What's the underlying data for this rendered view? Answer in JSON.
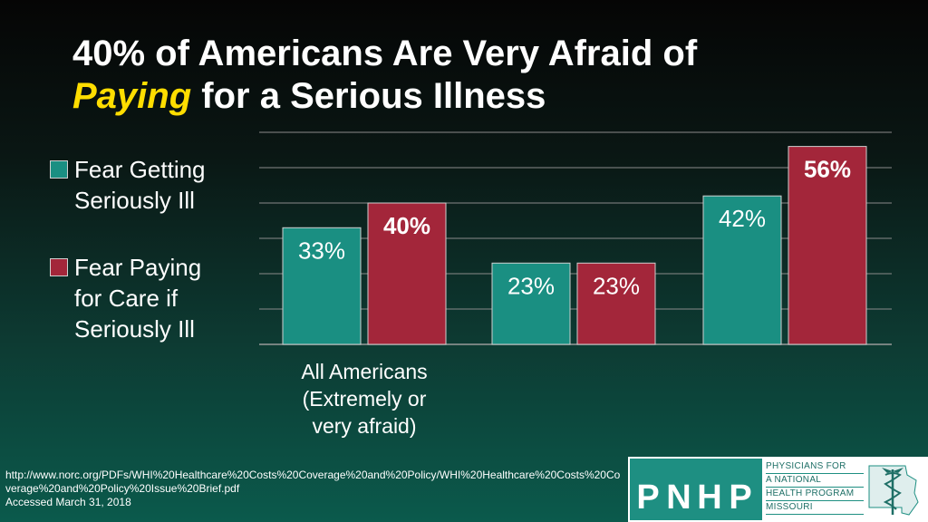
{
  "title": {
    "line1": "40% of Americans Are Very Afraid of",
    "line2_highlight": "Paying",
    "line2_rest": " for a Serious Illness"
  },
  "colors": {
    "series1": "#1a8f82",
    "series2": "#a3263a",
    "title_highlight": "#ffdd00"
  },
  "legend": {
    "item1": [
      "Fear Getting",
      "Seriously Ill"
    ],
    "item2": [
      "Fear Paying",
      "for Care if",
      "Seriously Ill"
    ]
  },
  "chart_data": {
    "type": "bar",
    "categories": [
      [
        "All Americans",
        "(Extremely or",
        "very afraid)"
      ],
      [],
      []
    ],
    "series": [
      {
        "name": "Fear Getting Seriously Ill",
        "values": [
          33,
          23,
          42
        ],
        "labels": [
          "33%",
          "23%",
          "42%"
        ]
      },
      {
        "name": "Fear Paying for Care if Seriously Ill",
        "values": [
          40,
          23,
          56
        ],
        "labels": [
          "40%",
          "23%",
          "56%"
        ]
      }
    ],
    "ylim": [
      0,
      60
    ],
    "grid": true,
    "legend_position": "left",
    "bold_labels": [
      [
        false,
        false,
        false
      ],
      [
        true,
        false,
        true
      ]
    ]
  },
  "source": {
    "url": "http://www.norc.org/PDFs/WHI%20Healthcare%20Costs%20Coverage%20and%20Policy/WHI%20Healthcare%20Costs%20Coverage%20and%20Policy%20Issue%20Brief.pdf",
    "accessed": "Accessed March 31, 2018"
  },
  "logo": {
    "letters": [
      "P",
      "N",
      "H",
      "P"
    ],
    "side_text": [
      "PHYSICIANS FOR",
      "A NATIONAL",
      "HEALTH PROGRAM",
      "MISSOURI"
    ],
    "icon": "caduceus-missouri-icon"
  }
}
